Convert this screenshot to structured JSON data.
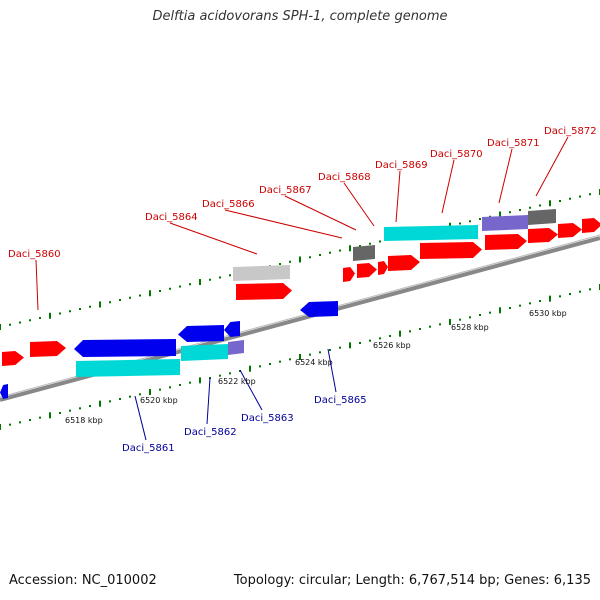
{
  "title": "Delftia acidovorans SPH-1, complete genome",
  "footer": {
    "accession": "Accession: NC_010002",
    "topology": "Topology: circular; Length: 6,767,514 bp; Genes: 6,135"
  },
  "colors": {
    "forward_gene": "#ff0000",
    "reverse_gene": "#0000ee",
    "rna_cyan": "#00d8d8",
    "other_purple": "#7766cc",
    "pseudo_gray": "#666666",
    "light_gray": "#c8c8c8",
    "backbone": "#888888",
    "tick": "#007700",
    "label_forward": "#cc0000",
    "label_reverse": "#000099"
  },
  "scale_labels": [
    "6518 kbp",
    "6520 kbp",
    "6522 kbp",
    "6524 kbp",
    "6526 kbp",
    "6528 kbp",
    "6530 kbp"
  ],
  "forward_labels": [
    "Daci_5860",
    "Daci_5864",
    "Daci_5866",
    "Daci_5867",
    "Daci_5868",
    "Daci_5869",
    "Daci_5870",
    "Daci_5871",
    "Daci_5872"
  ],
  "reverse_labels": [
    "Daci_5861",
    "Daci_5862",
    "Daci_5863",
    "Daci_5865"
  ]
}
